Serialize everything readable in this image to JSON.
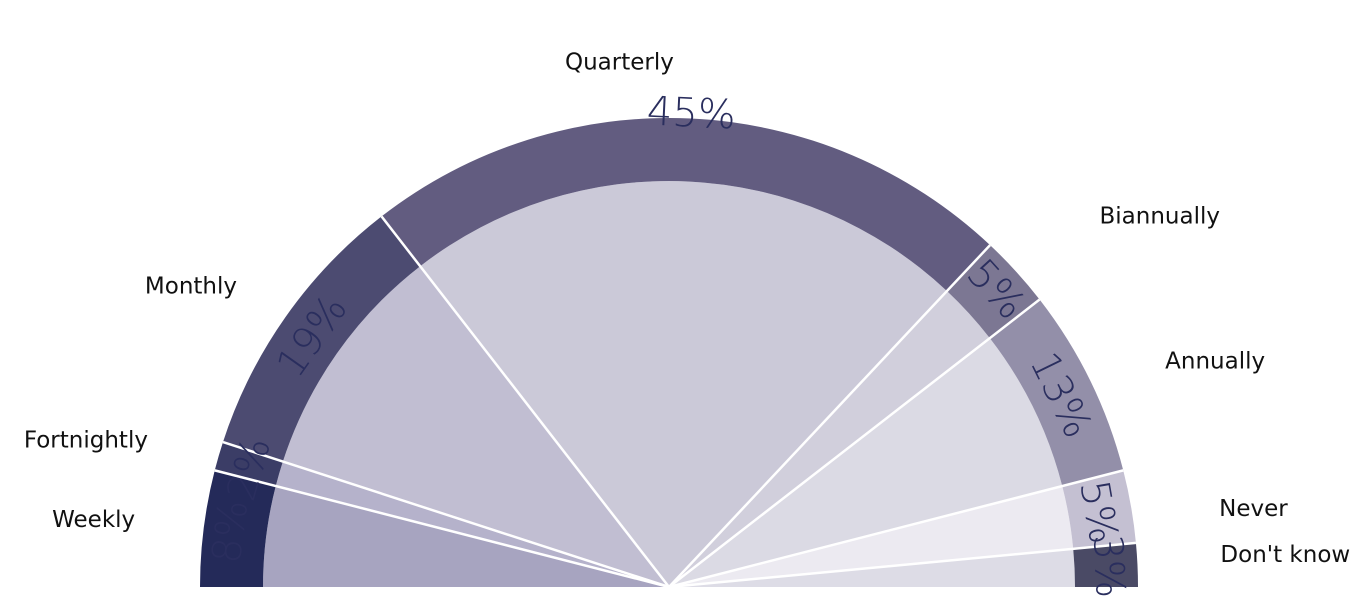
{
  "chart_data": {
    "type": "pie",
    "subtype": "semicircle",
    "title": "",
    "categories": [
      "Weekly",
      "Fortnightly",
      "Monthly",
      "Quarterly",
      "Biannually",
      "Annually",
      "Never",
      "Don't know"
    ],
    "values": [
      8,
      2,
      19,
      45,
      5,
      13,
      5,
      3
    ],
    "value_labels": [
      "8%",
      "2%",
      "19%",
      "45%",
      "5%",
      "13%",
      "5%",
      "3%"
    ],
    "unit": "%",
    "legend": "none",
    "grid": false,
    "colors": {
      "rim": [
        "#242a59",
        "#3b3d66",
        "#4c4b71",
        "#625c80",
        "#7c7793",
        "#938fa9",
        "#c4c0d2",
        "#4a4a65"
      ],
      "fill": [
        "#a7a4c0",
        "#b5b2cb",
        "#c1bed2",
        "#cbc9d8",
        "#d1cfdc",
        "#dbdae4",
        "#eceaf1",
        "#dddce6"
      ],
      "separator": "#ffffff",
      "category_text": "#111111",
      "percent_text": "#2a2e5e"
    }
  }
}
